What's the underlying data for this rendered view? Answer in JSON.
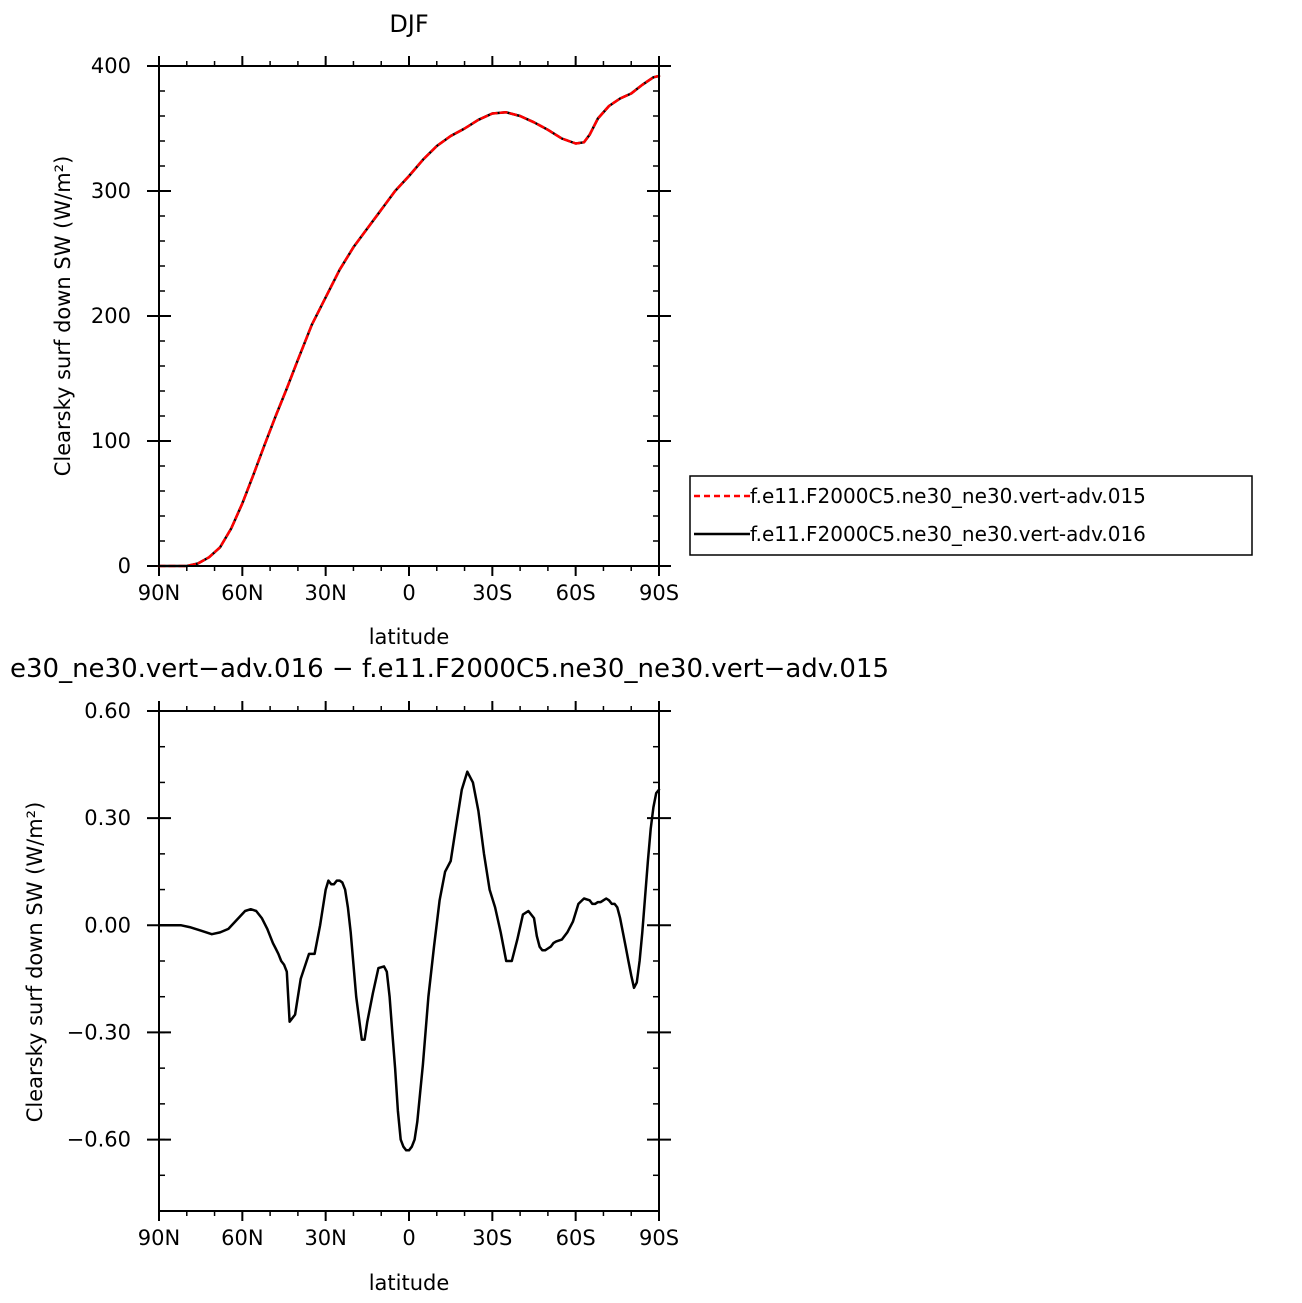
{
  "chart_data": [
    {
      "type": "line",
      "title": "DJF",
      "xlabel": "latitude",
      "ylabel": "Clearsky surf down SW (W/m²)",
      "xlim": [
        -90,
        90
      ],
      "ylim": [
        0,
        400
      ],
      "x_ticks": [
        -90,
        -60,
        -30,
        0,
        30,
        60,
        90
      ],
      "x_tick_labels": [
        "90N",
        "60N",
        "30N",
        "0",
        "30S",
        "60S",
        "90S"
      ],
      "y_ticks": [
        0,
        100,
        200,
        300,
        400
      ],
      "y_tick_labels": [
        "0",
        "100",
        "200",
        "300",
        "400"
      ],
      "legend_position": "right",
      "series": [
        {
          "name": "f.e11.F2000C5.ne30_ne30.vert-adv.015",
          "color": "#ff0000",
          "style": "dashed",
          "x": [
            -90,
            -85,
            -80,
            -76,
            -72,
            -68,
            -64,
            -60,
            -56,
            -52,
            -48,
            -44,
            -40,
            -35,
            -30,
            -25,
            -20,
            -15,
            -10,
            -5,
            0,
            5,
            10,
            15,
            20,
            25,
            30,
            35,
            40,
            45,
            50,
            55,
            60,
            63,
            65,
            68,
            72,
            76,
            80,
            84,
            88,
            90
          ],
          "y": [
            0,
            0,
            0,
            2,
            7,
            15,
            30,
            50,
            73,
            97,
            120,
            142,
            165,
            193,
            215,
            237,
            255,
            270,
            285,
            300,
            312,
            325,
            336,
            344,
            350,
            357,
            362,
            363,
            360,
            355,
            349,
            342,
            338,
            339,
            345,
            358,
            368,
            374,
            378,
            385,
            391,
            392
          ]
        },
        {
          "name": "f.e11.F2000C5.ne30_ne30.vert-adv.016",
          "color": "#000000",
          "style": "solid",
          "x": [
            -90,
            -85,
            -80,
            -76,
            -72,
            -68,
            -64,
            -60,
            -56,
            -52,
            -48,
            -44,
            -40,
            -35,
            -30,
            -25,
            -20,
            -15,
            -10,
            -5,
            0,
            5,
            10,
            15,
            20,
            25,
            30,
            35,
            40,
            45,
            50,
            55,
            60,
            63,
            65,
            68,
            72,
            76,
            80,
            84,
            88,
            90
          ],
          "y": [
            0,
            0,
            0,
            2,
            7,
            15,
            30,
            50,
            73,
            97,
            120,
            142,
            165,
            193,
            215,
            237,
            255,
            270,
            285,
            300,
            312,
            325,
            336,
            344,
            350,
            357,
            362,
            363,
            360,
            355,
            349,
            342,
            338,
            339,
            345,
            358,
            368,
            374,
            378,
            385,
            391,
            392
          ]
        }
      ]
    },
    {
      "type": "line",
      "title": "e30_ne30.vert−adv.016 − f.e11.F2000C5.ne30_ne30.vert−adv.015",
      "xlabel": "latitude",
      "ylabel": "Clearsky surf down SW (W/m²)",
      "xlim": [
        -90,
        90
      ],
      "ylim": [
        -0.8,
        0.6
      ],
      "x_ticks": [
        -90,
        -60,
        -30,
        0,
        30,
        60,
        90
      ],
      "x_tick_labels": [
        "90N",
        "60N",
        "30N",
        "0",
        "30S",
        "60S",
        "90S"
      ],
      "y_ticks": [
        -0.6,
        -0.3,
        0,
        0.3,
        0.6
      ],
      "y_tick_labels": [
        "−0.60",
        "−0.30",
        "0.00",
        "0.30",
        "0.60"
      ],
      "series": [
        {
          "color": "#000000",
          "style": "solid",
          "x": [
            -90,
            -82,
            -79,
            -75,
            -71,
            -68,
            -65,
            -62,
            -59,
            -57,
            -55,
            -53,
            -51,
            -49,
            -48,
            -47,
            -46,
            -45,
            -44,
            -43,
            -41,
            -39,
            -36,
            -34,
            -32,
            -30,
            -29,
            -28,
            -27,
            -26,
            -25,
            -24,
            -23,
            -22,
            -21,
            -19,
            -17,
            -16,
            -15,
            -13,
            -11,
            -9,
            -8,
            -7,
            -6,
            -5,
            -4,
            -3,
            -2,
            -1,
            0,
            1,
            2,
            3,
            4,
            5,
            7,
            9,
            11,
            13,
            15,
            17,
            19,
            21,
            23,
            25,
            27,
            29,
            31,
            33,
            35,
            37,
            39,
            41,
            43,
            45,
            46,
            47,
            48,
            49,
            50,
            51,
            52,
            53,
            55,
            57,
            59,
            61,
            63,
            65,
            66,
            67,
            68,
            69,
            70,
            71,
            72,
            73,
            74,
            75,
            76,
            77,
            78,
            79,
            80,
            81,
            82,
            83,
            84,
            85,
            86,
            87,
            88,
            89,
            90
          ],
          "y": [
            0,
            0,
            -0.005,
            -0.015,
            -0.025,
            -0.02,
            -0.01,
            0.015,
            0.04,
            0.045,
            0.04,
            0.02,
            -0.01,
            -0.05,
            -0.065,
            -0.08,
            -0.1,
            -0.11,
            -0.13,
            -0.27,
            -0.25,
            -0.15,
            -0.08,
            -0.08,
            0,
            0.1,
            0.125,
            0.115,
            0.115,
            0.125,
            0.125,
            0.12,
            0.1,
            0.05,
            -0.02,
            -0.2,
            -0.32,
            -0.32,
            -0.27,
            -0.19,
            -0.12,
            -0.115,
            -0.13,
            -0.2,
            -0.3,
            -0.4,
            -0.52,
            -0.6,
            -0.62,
            -0.63,
            -0.63,
            -0.62,
            -0.6,
            -0.55,
            -0.47,
            -0.39,
            -0.2,
            -0.06,
            0.07,
            0.15,
            0.18,
            0.28,
            0.38,
            0.43,
            0.4,
            0.32,
            0.2,
            0.1,
            0.05,
            -0.02,
            -0.1,
            -0.1,
            -0.04,
            0.03,
            0.04,
            0.02,
            -0.03,
            -0.06,
            -0.07,
            -0.07,
            -0.065,
            -0.06,
            -0.05,
            -0.045,
            -0.04,
            -0.02,
            0.01,
            0.06,
            0.075,
            0.07,
            0.06,
            0.06,
            0.065,
            0.065,
            0.07,
            0.075,
            0.07,
            0.06,
            0.06,
            0.05,
            0.02,
            -0.02,
            -0.06,
            -0.1,
            -0.14,
            -0.175,
            -0.16,
            -0.1,
            -0.02,
            0.08,
            0.18,
            0.27,
            0.33,
            0.37,
            0.38
          ]
        }
      ]
    }
  ]
}
